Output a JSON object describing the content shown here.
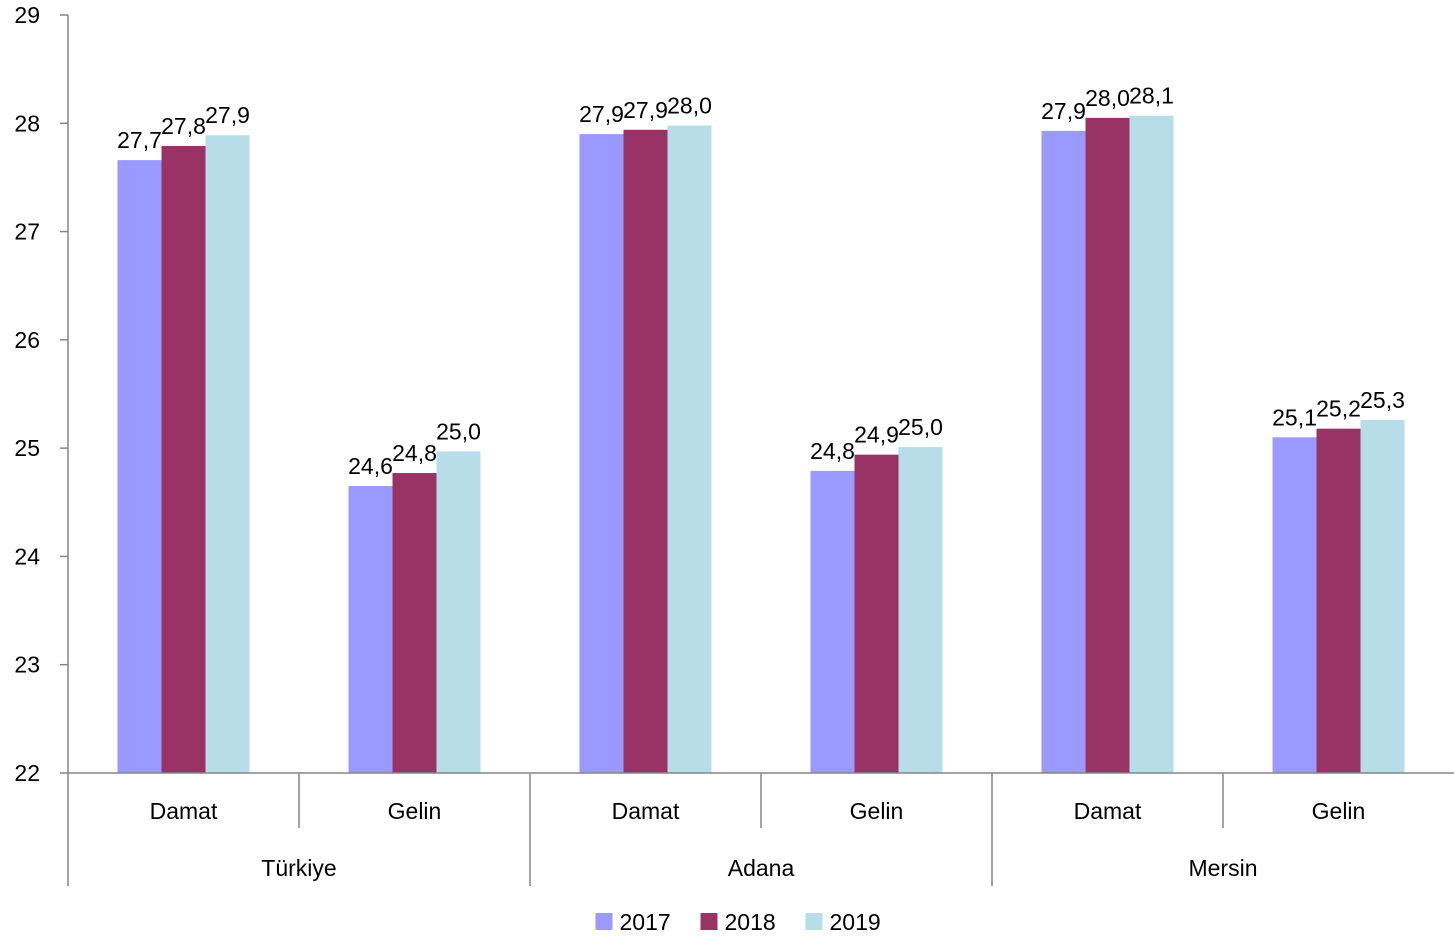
{
  "chart_data": {
    "type": "bar",
    "title": "",
    "xlabel": "",
    "ylabel": "",
    "ylim": [
      22,
      29
    ],
    "yticks": [
      22,
      23,
      24,
      25,
      26,
      27,
      28,
      29
    ],
    "grid": false,
    "legend_position": "bottom",
    "groups": [
      {
        "label": "Türkiye",
        "categories": [
          "Damat",
          "Gelin"
        ]
      },
      {
        "label": "Adana",
        "categories": [
          "Damat",
          "Gelin"
        ]
      },
      {
        "label": "Mersin",
        "categories": [
          "Damat",
          "Gelin"
        ]
      }
    ],
    "series": [
      {
        "name": "2017",
        "color": "#9999ff",
        "values": [
          27.66,
          24.65,
          27.9,
          24.79,
          27.93,
          25.1
        ],
        "labels": [
          "27,7",
          "24,6",
          "27,9",
          "24,8",
          "27,9",
          "25,1"
        ]
      },
      {
        "name": "2018",
        "color": "#993366",
        "values": [
          27.79,
          24.77,
          27.94,
          24.94,
          28.05,
          25.18
        ],
        "labels": [
          "27,8",
          "24,8",
          "27,9",
          "24,9",
          "28,0",
          "25,2"
        ]
      },
      {
        "name": "2019",
        "color": "#b7dee8",
        "values": [
          27.89,
          24.97,
          27.98,
          25.01,
          28.07,
          25.26
        ],
        "labels": [
          "27,9",
          "25,0",
          "28,0",
          "25,0",
          "28,1",
          "25,3"
        ]
      }
    ]
  }
}
